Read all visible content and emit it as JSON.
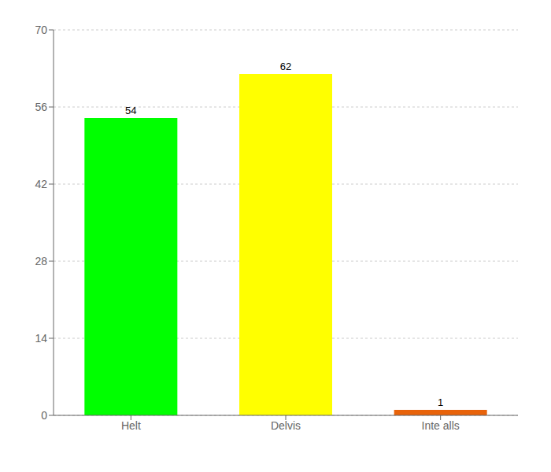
{
  "chart_data": {
    "type": "bar",
    "categories": [
      "Helt",
      "Delvis",
      "Inte alls"
    ],
    "values": [
      54,
      62,
      1
    ],
    "colors": [
      "#00ff00",
      "#ffff00",
      "#e8630a"
    ],
    "ylim": [
      0,
      70
    ],
    "yticks": [
      0,
      14,
      28,
      42,
      56,
      70
    ],
    "grid": true,
    "data_labels": true
  }
}
